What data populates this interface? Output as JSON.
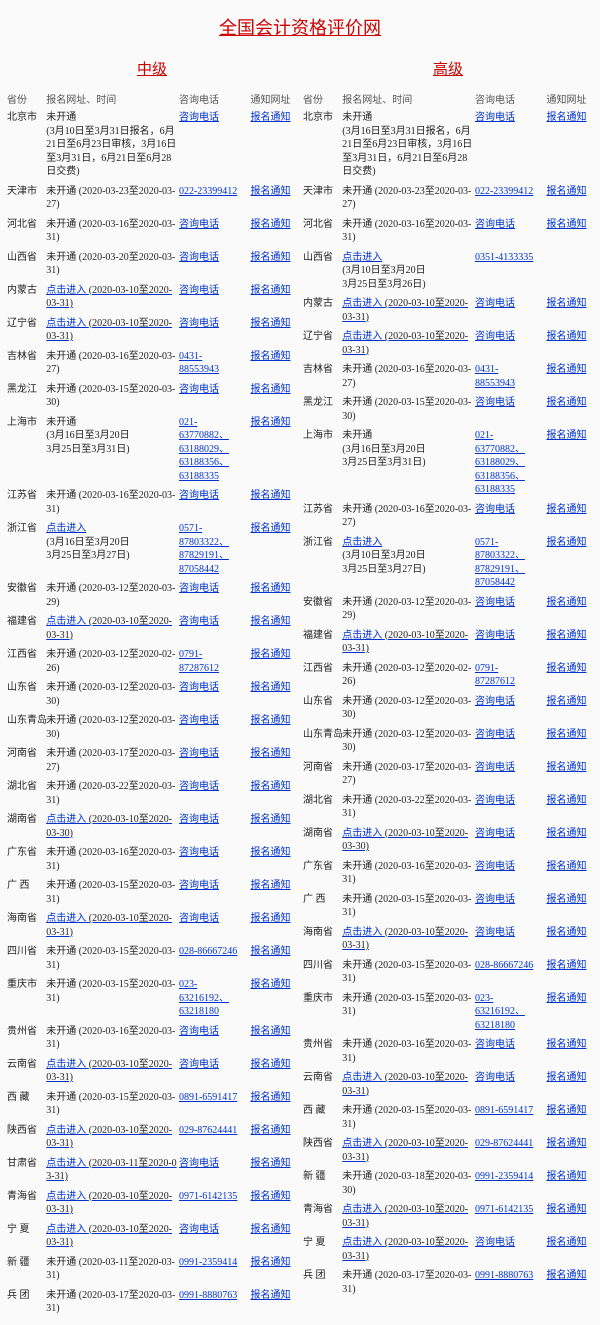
{
  "title": "全国会计资格评价网",
  "colors": {
    "accent": "#cc0000",
    "link": "#0033cc",
    "text": "#222"
  },
  "headers": {
    "province": "省份",
    "signup": "报名网址、时间",
    "phone": "咨询电话",
    "notice": "通知网址"
  },
  "sections": [
    {
      "name": "中级",
      "rows": [
        {
          "province": "北京市",
          "linkText": "未开通",
          "noLink": true,
          "time": "(3月10日至3月31日报名，6月21日至6月23日审核，3月16日至3月31日，6月21日至6月28日交费)",
          "phone": "咨询电话",
          "notice": "报名通知"
        },
        {
          "province": "天津市",
          "linkText": "未开通",
          "noLink": true,
          "time": "(2020-03-23至2020-03-27)",
          "phone": "022-23399412",
          "notice": "报名通知"
        },
        {
          "province": "河北省",
          "linkText": "未开通",
          "noLink": true,
          "time": "(2020-03-16至2020-03-31)",
          "phone": "咨询电话",
          "notice": "报名通知"
        },
        {
          "province": "山西省",
          "linkText": "未开通",
          "noLink": true,
          "time": "(2020-03-20至2020-03-31)",
          "phone": "咨询电话",
          "notice": "报名通知"
        },
        {
          "province": "内蒙古",
          "linkText": "点击进入",
          "time": "(2020-03-10至2020-03-31)",
          "phone": "咨询电话",
          "notice": "报名通知"
        },
        {
          "province": "辽宁省",
          "linkText": "点击进入",
          "time": "(2020-03-10至2020-03-31)",
          "phone": "咨询电话",
          "notice": "报名通知"
        },
        {
          "province": "吉林省",
          "linkText": "未开通",
          "noLink": true,
          "time": "(2020-03-16至2020-03-27)",
          "phone": "0431-\n88553943",
          "notice": "报名通知"
        },
        {
          "province": "黑龙江",
          "linkText": "未开通",
          "noLink": true,
          "time": "(2020-03-15至2020-03-30)",
          "phone": "咨询电话",
          "notice": "报名通知"
        },
        {
          "province": "上海市",
          "linkText": "未开通",
          "noLink": true,
          "time": "(3月16日至3月20日\n3月25日至3月31日)",
          "phone": "021-\n63770882、\n63188029、\n63188356、\n63188335",
          "notice": "报名通知"
        },
        {
          "province": "江苏省",
          "linkText": "未开通",
          "noLink": true,
          "time": "(2020-03-16至2020-03-31)",
          "phone": "咨询电话",
          "notice": "报名通知"
        },
        {
          "province": "浙江省",
          "linkText": "点击进入",
          "time": "(3月16日至3月20日\n3月25日至3月27日)",
          "phone": "0571-\n87803322、\n87829191、\n87058442",
          "notice": "报名通知"
        },
        {
          "province": "安徽省",
          "linkText": "未开通",
          "noLink": true,
          "time": "(2020-03-12至2020-03-29)",
          "phone": "咨询电话",
          "notice": "报名通知"
        },
        {
          "province": "福建省",
          "linkText": "点击进入",
          "time": "(2020-03-10至2020-03-31)",
          "phone": "咨询电话",
          "notice": "报名通知"
        },
        {
          "province": "江西省",
          "linkText": "未开通",
          "noLink": true,
          "time": "(2020-03-12至2020-02-26)",
          "phone": "0791-\n87287612",
          "notice": "报名通知"
        },
        {
          "province": "山东省",
          "linkText": "未开通",
          "noLink": true,
          "time": "(2020-03-12至2020-03-30)",
          "phone": "咨询电话",
          "notice": "报名通知"
        },
        {
          "province": "山东青岛",
          "linkText": "未开通",
          "noLink": true,
          "time": "(2020-03-12至2020-03-30)",
          "phone": "咨询电话",
          "notice": "报名通知"
        },
        {
          "province": "河南省",
          "linkText": "未开通",
          "noLink": true,
          "time": "(2020-03-17至2020-03-27)",
          "phone": "咨询电话",
          "notice": "报名通知"
        },
        {
          "province": "湖北省",
          "linkText": "未开通",
          "noLink": true,
          "time": "(2020-03-22至2020-03-31)",
          "phone": "咨询电话",
          "notice": "报名通知"
        },
        {
          "province": "湖南省",
          "linkText": "点击进入",
          "time": "(2020-03-10至2020-03-30)",
          "phone": "咨询电话",
          "notice": "报名通知"
        },
        {
          "province": "广东省",
          "linkText": "未开通",
          "noLink": true,
          "time": "(2020-03-16至2020-03-31)",
          "phone": "咨询电话",
          "notice": "报名通知"
        },
        {
          "province": "广 西",
          "linkText": "未开通",
          "noLink": true,
          "time": "(2020-03-15至2020-03-31)",
          "phone": "咨询电话",
          "notice": "报名通知"
        },
        {
          "province": "海南省",
          "linkText": "点击进入",
          "time": "(2020-03-10至2020-03-31)",
          "phone": "咨询电话",
          "notice": "报名通知"
        },
        {
          "province": "四川省",
          "linkText": "未开通",
          "noLink": true,
          "time": "(2020-03-15至2020-03-31)",
          "phone": "028-86667246",
          "notice": "报名通知"
        },
        {
          "province": "重庆市",
          "linkText": "未开通",
          "noLink": true,
          "time": "(2020-03-15至2020-03-31)",
          "phone": "023-\n63216192、\n63218180",
          "notice": "报名通知"
        },
        {
          "province": "贵州省",
          "linkText": "未开通",
          "noLink": true,
          "time": "(2020-03-16至2020-03-31)",
          "phone": "咨询电话",
          "notice": "报名通知"
        },
        {
          "province": "云南省",
          "linkText": "点击进入",
          "time": "(2020-03-10至2020-03-31)",
          "phone": "咨询电话",
          "notice": "报名通知"
        },
        {
          "province": "西 藏",
          "linkText": "未开通",
          "noLink": true,
          "time": "(2020-03-15至2020-03-31)",
          "phone": "0891-6591417",
          "notice": "报名通知"
        },
        {
          "province": "陕西省",
          "linkText": "点击进入",
          "time": "(2020-03-10至2020-03-31)",
          "phone": "029-87624441",
          "notice": "报名通知"
        },
        {
          "province": "甘肃省",
          "linkText": "点击进入",
          "time": "(2020-03-11至2020-03-31)",
          "phone": "咨询电话",
          "notice": "报名通知"
        },
        {
          "province": "青海省",
          "linkText": "点击进入",
          "time": "(2020-03-10至2020-03-31)",
          "phone": "0971-6142135",
          "notice": "报名通知"
        },
        {
          "province": "宁 夏",
          "linkText": "点击进入",
          "time": "(2020-03-10至2020-03-31)",
          "phone": "咨询电话",
          "notice": "报名通知"
        },
        {
          "province": "新 疆",
          "linkText": "未开通",
          "noLink": true,
          "time": "(2020-03-11至2020-03-31)",
          "phone": "0991-2359414",
          "notice": "报名通知"
        },
        {
          "province": "兵 团",
          "linkText": "未开通",
          "noLink": true,
          "time": "(2020-03-17至2020-03-31)",
          "phone": "0991-8880763",
          "notice": "报名通知"
        }
      ]
    },
    {
      "name": "高级",
      "rows": [
        {
          "province": "北京市",
          "linkText": "未开通",
          "noLink": true,
          "time": "(3月16日至3月31日报名，6月21日至6月23日审核，3月16日至3月31日，6月21日至6月28日交费)",
          "phone": "咨询电话",
          "notice": "报名通知"
        },
        {
          "province": "天津市",
          "linkText": "未开通",
          "noLink": true,
          "time": "(2020-03-23至2020-03-27)",
          "phone": "022-23399412",
          "notice": "报名通知"
        },
        {
          "province": "河北省",
          "linkText": "未开通",
          "noLink": true,
          "time": "(2020-03-16至2020-03-31)",
          "phone": "咨询电话",
          "notice": "报名通知"
        },
        {
          "province": "山西省",
          "linkText": "点击进入",
          "time": "(3月10日至3月20日\n3月25日至3月26日)",
          "phone": "0351-4133335",
          "notice": ""
        },
        {
          "province": "内蒙古",
          "linkText": "点击进入",
          "time": "(2020-03-10至2020-03-31)",
          "phone": "咨询电话",
          "notice": "报名通知"
        },
        {
          "province": "辽宁省",
          "linkText": "点击进入",
          "time": "(2020-03-10至2020-03-31)",
          "phone": "咨询电话",
          "notice": "报名通知"
        },
        {
          "province": "吉林省",
          "linkText": "未开通",
          "noLink": true,
          "time": "(2020-03-16至2020-03-27)",
          "phone": "0431-\n88553943",
          "notice": "报名通知"
        },
        {
          "province": "黑龙江",
          "linkText": "未开通",
          "noLink": true,
          "time": "(2020-03-15至2020-03-30)",
          "phone": "咨询电话",
          "notice": "报名通知"
        },
        {
          "province": "上海市",
          "linkText": "未开通",
          "noLink": true,
          "time": "(3月16日至3月20日\n3月25日至3月31日)",
          "phone": "021-\n63770882、\n63188029、\n63188356、\n63188335",
          "notice": "报名通知"
        },
        {
          "province": "江苏省",
          "linkText": "未开通",
          "noLink": true,
          "time": "(2020-03-16至2020-03-27)",
          "phone": "咨询电话",
          "notice": "报名通知"
        },
        {
          "province": "浙江省",
          "linkText": "点击进入",
          "time": "(3月10日至3月20日\n3月25日至3月27日)",
          "phone": "0571-\n87803322、\n87829191、\n87058442",
          "notice": "报名通知"
        },
        {
          "province": "安徽省",
          "linkText": "未开通",
          "noLink": true,
          "time": "(2020-03-12至2020-03-29)",
          "phone": "咨询电话",
          "notice": "报名通知"
        },
        {
          "province": "福建省",
          "linkText": "点击进入",
          "time": "(2020-03-10至2020-03-31)",
          "phone": "咨询电话",
          "notice": "报名通知"
        },
        {
          "province": "江西省",
          "linkText": "未开通",
          "noLink": true,
          "time": "(2020-03-12至2020-02-26)",
          "phone": "0791-\n87287612",
          "notice": "报名通知"
        },
        {
          "province": "山东省",
          "linkText": "未开通",
          "noLink": true,
          "time": "(2020-03-12至2020-03-30)",
          "phone": "咨询电话",
          "notice": "报名通知"
        },
        {
          "province": "山东青岛",
          "linkText": "未开通",
          "noLink": true,
          "time": "(2020-03-12至2020-03-30)",
          "phone": "咨询电话",
          "notice": "报名通知"
        },
        {
          "province": "河南省",
          "linkText": "未开通",
          "noLink": true,
          "time": "(2020-03-17至2020-03-27)",
          "phone": "咨询电话",
          "notice": "报名通知"
        },
        {
          "province": "湖北省",
          "linkText": "未开通",
          "noLink": true,
          "time": "(2020-03-22至2020-03-31)",
          "phone": "咨询电话",
          "notice": "报名通知"
        },
        {
          "province": "湖南省",
          "linkText": "点击进入",
          "time": "(2020-03-10至2020-03-30)",
          "phone": "咨询电话",
          "notice": "报名通知"
        },
        {
          "province": "广东省",
          "linkText": "未开通",
          "noLink": true,
          "time": "(2020-03-16至2020-03-31)",
          "phone": "咨询电话",
          "notice": "报名通知"
        },
        {
          "province": "广 西",
          "linkText": "未开通",
          "noLink": true,
          "time": "(2020-03-15至2020-03-31)",
          "phone": "咨询电话",
          "notice": "报名通知"
        },
        {
          "province": "海南省",
          "linkText": "点击进入",
          "time": "(2020-03-10至2020-03-31)",
          "phone": "咨询电话",
          "notice": "报名通知"
        },
        {
          "province": "四川省",
          "linkText": "未开通",
          "noLink": true,
          "time": "(2020-03-15至2020-03-31)",
          "phone": "028-86667246",
          "notice": "报名通知"
        },
        {
          "province": "重庆市",
          "linkText": "未开通",
          "noLink": true,
          "time": "(2020-03-15至2020-03-31)",
          "phone": "023-\n63216192、\n63218180",
          "notice": "报名通知"
        },
        {
          "province": "贵州省",
          "linkText": "未开通",
          "noLink": true,
          "time": "(2020-03-16至2020-03-31)",
          "phone": "咨询电话",
          "notice": "报名通知"
        },
        {
          "province": "云南省",
          "linkText": "点击进入",
          "time": "(2020-03-10至2020-03-31)",
          "phone": "咨询电话",
          "notice": "报名通知"
        },
        {
          "province": "西 藏",
          "linkText": "未开通",
          "noLink": true,
          "time": "(2020-03-15至2020-03-31)",
          "phone": "0891-6591417",
          "notice": "报名通知"
        },
        {
          "province": "陕西省",
          "linkText": "点击进入",
          "time": "(2020-03-10至2020-03-31)",
          "phone": "029-87624441",
          "notice": "报名通知"
        },
        {
          "province": "新 疆",
          "linkText": "未开通",
          "noLink": true,
          "time": "(2020-03-18至2020-03-30)",
          "phone": "0991-2359414",
          "notice": "报名通知"
        },
        {
          "province": "青海省",
          "linkText": "点击进入",
          "time": "(2020-03-10至2020-03-31)",
          "phone": "0971-6142135",
          "notice": "报名通知"
        },
        {
          "province": "宁 夏",
          "linkText": "点击进入",
          "time": "(2020-03-10至2020-03-31)",
          "phone": "咨询电话",
          "notice": "报名通知"
        },
        {
          "province": "兵 团",
          "linkText": "未开通",
          "noLink": true,
          "time": "(2020-03-17至2020-03-31)",
          "phone": "0991-8880763",
          "notice": "报名通知"
        }
      ]
    }
  ]
}
